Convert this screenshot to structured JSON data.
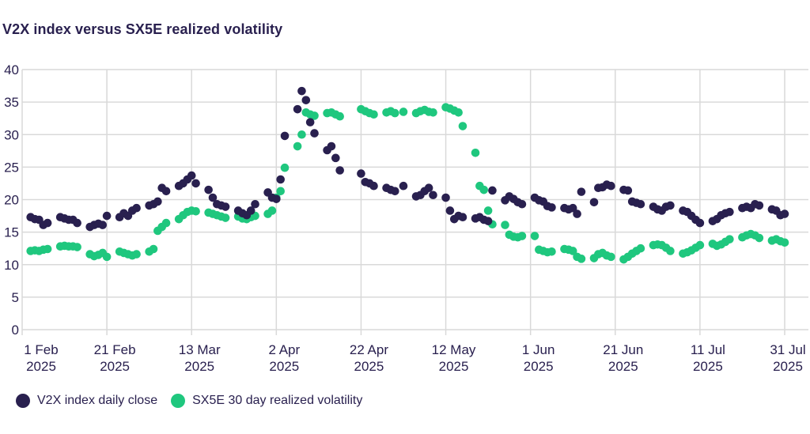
{
  "title": "V2X index versus SX5E realized volatility",
  "colors": {
    "v2x": "#29204f",
    "sx5e": "#1fc77e",
    "grid": "#d9d9d9",
    "text": "#29204f",
    "background": "#ffffff"
  },
  "legend": {
    "items": [
      {
        "label": "V2X index daily close",
        "series": "v2x"
      },
      {
        "label": "SX5E 30 day realized volatility",
        "series": "sx5e"
      }
    ]
  },
  "chart_data": {
    "type": "scatter",
    "title": "V2X index versus SX5E realized volatility",
    "xlabel": "",
    "ylabel": "",
    "ylim": [
      0,
      40
    ],
    "y_ticks": [
      0,
      5,
      10,
      15,
      20,
      25,
      30,
      35,
      40
    ],
    "grid": true,
    "legend_position": "bottom",
    "x_start_date": "2025-02-01",
    "x_range_days": 180,
    "x_ticks": [
      {
        "day": 0,
        "line1": "1 Feb",
        "line2": "2025"
      },
      {
        "day": 20,
        "line1": "21 Feb",
        "line2": "2025"
      },
      {
        "day": 40,
        "line1": "13 Mar",
        "line2": "2025"
      },
      {
        "day": 60,
        "line1": "2 Apr",
        "line2": "2025"
      },
      {
        "day": 80,
        "line1": "22 Apr",
        "line2": "2025"
      },
      {
        "day": 100,
        "line1": "12 May",
        "line2": "2025"
      },
      {
        "day": 120,
        "line1": "1 Jun",
        "line2": "2025"
      },
      {
        "day": 140,
        "line1": "21 Jun",
        "line2": "2025"
      },
      {
        "day": 160,
        "line1": "11 Jul",
        "line2": "2025"
      },
      {
        "day": 180,
        "line1": "31 Jul",
        "line2": "2025"
      }
    ],
    "dates": [
      "2025-02-03",
      "2025-02-04",
      "2025-02-05",
      "2025-02-06",
      "2025-02-07",
      "2025-02-10",
      "2025-02-11",
      "2025-02-12",
      "2025-02-13",
      "2025-02-14",
      "2025-02-17",
      "2025-02-18",
      "2025-02-19",
      "2025-02-20",
      "2025-02-21",
      "2025-02-24",
      "2025-02-25",
      "2025-02-26",
      "2025-02-27",
      "2025-02-28",
      "2025-03-03",
      "2025-03-04",
      "2025-03-05",
      "2025-03-06",
      "2025-03-07",
      "2025-03-10",
      "2025-03-11",
      "2025-03-12",
      "2025-03-13",
      "2025-03-14",
      "2025-03-17",
      "2025-03-18",
      "2025-03-19",
      "2025-03-20",
      "2025-03-21",
      "2025-03-24",
      "2025-03-25",
      "2025-03-26",
      "2025-03-27",
      "2025-03-28",
      "2025-03-31",
      "2025-04-01",
      "2025-04-02",
      "2025-04-03",
      "2025-04-04",
      "2025-04-07",
      "2025-04-08",
      "2025-04-09",
      "2025-04-10",
      "2025-04-11",
      "2025-04-14",
      "2025-04-15",
      "2025-04-16",
      "2025-04-17",
      "2025-04-22",
      "2025-04-23",
      "2025-04-24",
      "2025-04-25",
      "2025-04-28",
      "2025-04-29",
      "2025-04-30",
      "2025-05-02",
      "2025-05-05",
      "2025-05-06",
      "2025-05-07",
      "2025-05-08",
      "2025-05-09",
      "2025-05-12",
      "2025-05-13",
      "2025-05-14",
      "2025-05-15",
      "2025-05-16",
      "2025-05-19",
      "2025-05-20",
      "2025-05-21",
      "2025-05-22",
      "2025-05-23",
      "2025-05-26",
      "2025-05-27",
      "2025-05-28",
      "2025-05-29",
      "2025-05-30",
      "2025-06-02",
      "2025-06-03",
      "2025-06-04",
      "2025-06-05",
      "2025-06-06",
      "2025-06-09",
      "2025-06-10",
      "2025-06-11",
      "2025-06-12",
      "2025-06-13",
      "2025-06-16",
      "2025-06-17",
      "2025-06-18",
      "2025-06-19",
      "2025-06-20",
      "2025-06-23",
      "2025-06-24",
      "2025-06-25",
      "2025-06-26",
      "2025-06-27",
      "2025-06-30",
      "2025-07-01",
      "2025-07-02",
      "2025-07-03",
      "2025-07-04",
      "2025-07-07",
      "2025-07-08",
      "2025-07-09",
      "2025-07-10",
      "2025-07-11",
      "2025-07-14",
      "2025-07-15",
      "2025-07-16",
      "2025-07-17",
      "2025-07-18",
      "2025-07-21",
      "2025-07-22",
      "2025-07-23",
      "2025-07-24",
      "2025-07-25",
      "2025-07-28",
      "2025-07-29",
      "2025-07-30",
      "2025-07-31"
    ],
    "series": [
      {
        "name": "V2X index daily close",
        "color_key": "v2x",
        "values": [
          17.3,
          17.0,
          16.9,
          16.1,
          16.4,
          17.3,
          17.1,
          16.9,
          16.9,
          16.4,
          15.8,
          16.1,
          16.3,
          16.1,
          17.5,
          17.3,
          17.9,
          17.5,
          18.3,
          18.7,
          19.1,
          19.3,
          19.7,
          21.8,
          21.3,
          22.1,
          22.5,
          23.1,
          23.7,
          22.5,
          21.5,
          20.3,
          19.3,
          19.1,
          18.9,
          18.3,
          17.9,
          17.6,
          18.3,
          19.3,
          21.1,
          20.3,
          20.1,
          23.1,
          29.8,
          33.9,
          36.7,
          35.3,
          31.9,
          30.2,
          27.6,
          28.2,
          26.4,
          24.5,
          24.0,
          22.7,
          22.5,
          22.1,
          21.8,
          21.5,
          21.3,
          22.1,
          20.5,
          20.7,
          21.3,
          21.8,
          20.7,
          20.3,
          18.3,
          17.0,
          17.5,
          17.3,
          17.1,
          17.3,
          16.9,
          16.7,
          21.4,
          19.9,
          20.5,
          20.1,
          19.6,
          19.3,
          20.3,
          19.9,
          19.7,
          19.0,
          18.8,
          18.7,
          18.5,
          18.7,
          17.8,
          21.2,
          19.6,
          21.8,
          21.9,
          22.3,
          22.1,
          21.5,
          21.4,
          19.7,
          19.5,
          19.3,
          18.9,
          18.5,
          18.3,
          18.9,
          19.1,
          18.3,
          18.1,
          17.5,
          16.9,
          16.4,
          16.7,
          17.0,
          17.6,
          17.9,
          18.1,
          18.7,
          18.9,
          18.7,
          19.3,
          19.1,
          18.5,
          18.3,
          17.6,
          17.8
        ]
      },
      {
        "name": "SX5E 30 day realized volatility",
        "color_key": "sx5e",
        "values": [
          12.1,
          12.2,
          12.1,
          12.3,
          12.4,
          12.8,
          12.9,
          12.8,
          12.8,
          12.7,
          11.6,
          11.3,
          11.5,
          11.8,
          11.2,
          12.0,
          11.8,
          11.6,
          11.4,
          11.6,
          12.0,
          12.4,
          15.2,
          15.8,
          16.4,
          17.0,
          17.6,
          18.1,
          18.3,
          18.2,
          18.0,
          17.8,
          17.6,
          17.4,
          17.2,
          17.4,
          17.1,
          17.0,
          17.3,
          17.5,
          17.8,
          18.3,
          20.3,
          21.3,
          24.9,
          28.2,
          30.0,
          33.4,
          33.1,
          32.9,
          33.3,
          33.4,
          33.1,
          32.8,
          33.9,
          33.6,
          33.3,
          33.1,
          33.4,
          33.6,
          33.3,
          33.5,
          33.3,
          33.6,
          33.8,
          33.5,
          33.4,
          34.2,
          34.0,
          33.7,
          33.4,
          31.3,
          27.2,
          22.1,
          21.5,
          18.3,
          16.2,
          16.1,
          14.6,
          14.3,
          14.2,
          14.4,
          14.4,
          12.3,
          12.1,
          11.9,
          12.0,
          12.4,
          12.3,
          12.1,
          11.2,
          10.9,
          11.0,
          11.6,
          11.8,
          11.4,
          11.2,
          10.8,
          11.2,
          11.7,
          12.1,
          12.5,
          13.0,
          13.1,
          13.0,
          12.6,
          12.1,
          11.7,
          11.9,
          12.2,
          12.6,
          13.0,
          13.2,
          12.9,
          13.1,
          13.5,
          13.9,
          14.2,
          14.5,
          14.7,
          14.5,
          14.1,
          13.7,
          13.9,
          13.6,
          13.4
        ]
      }
    ]
  }
}
